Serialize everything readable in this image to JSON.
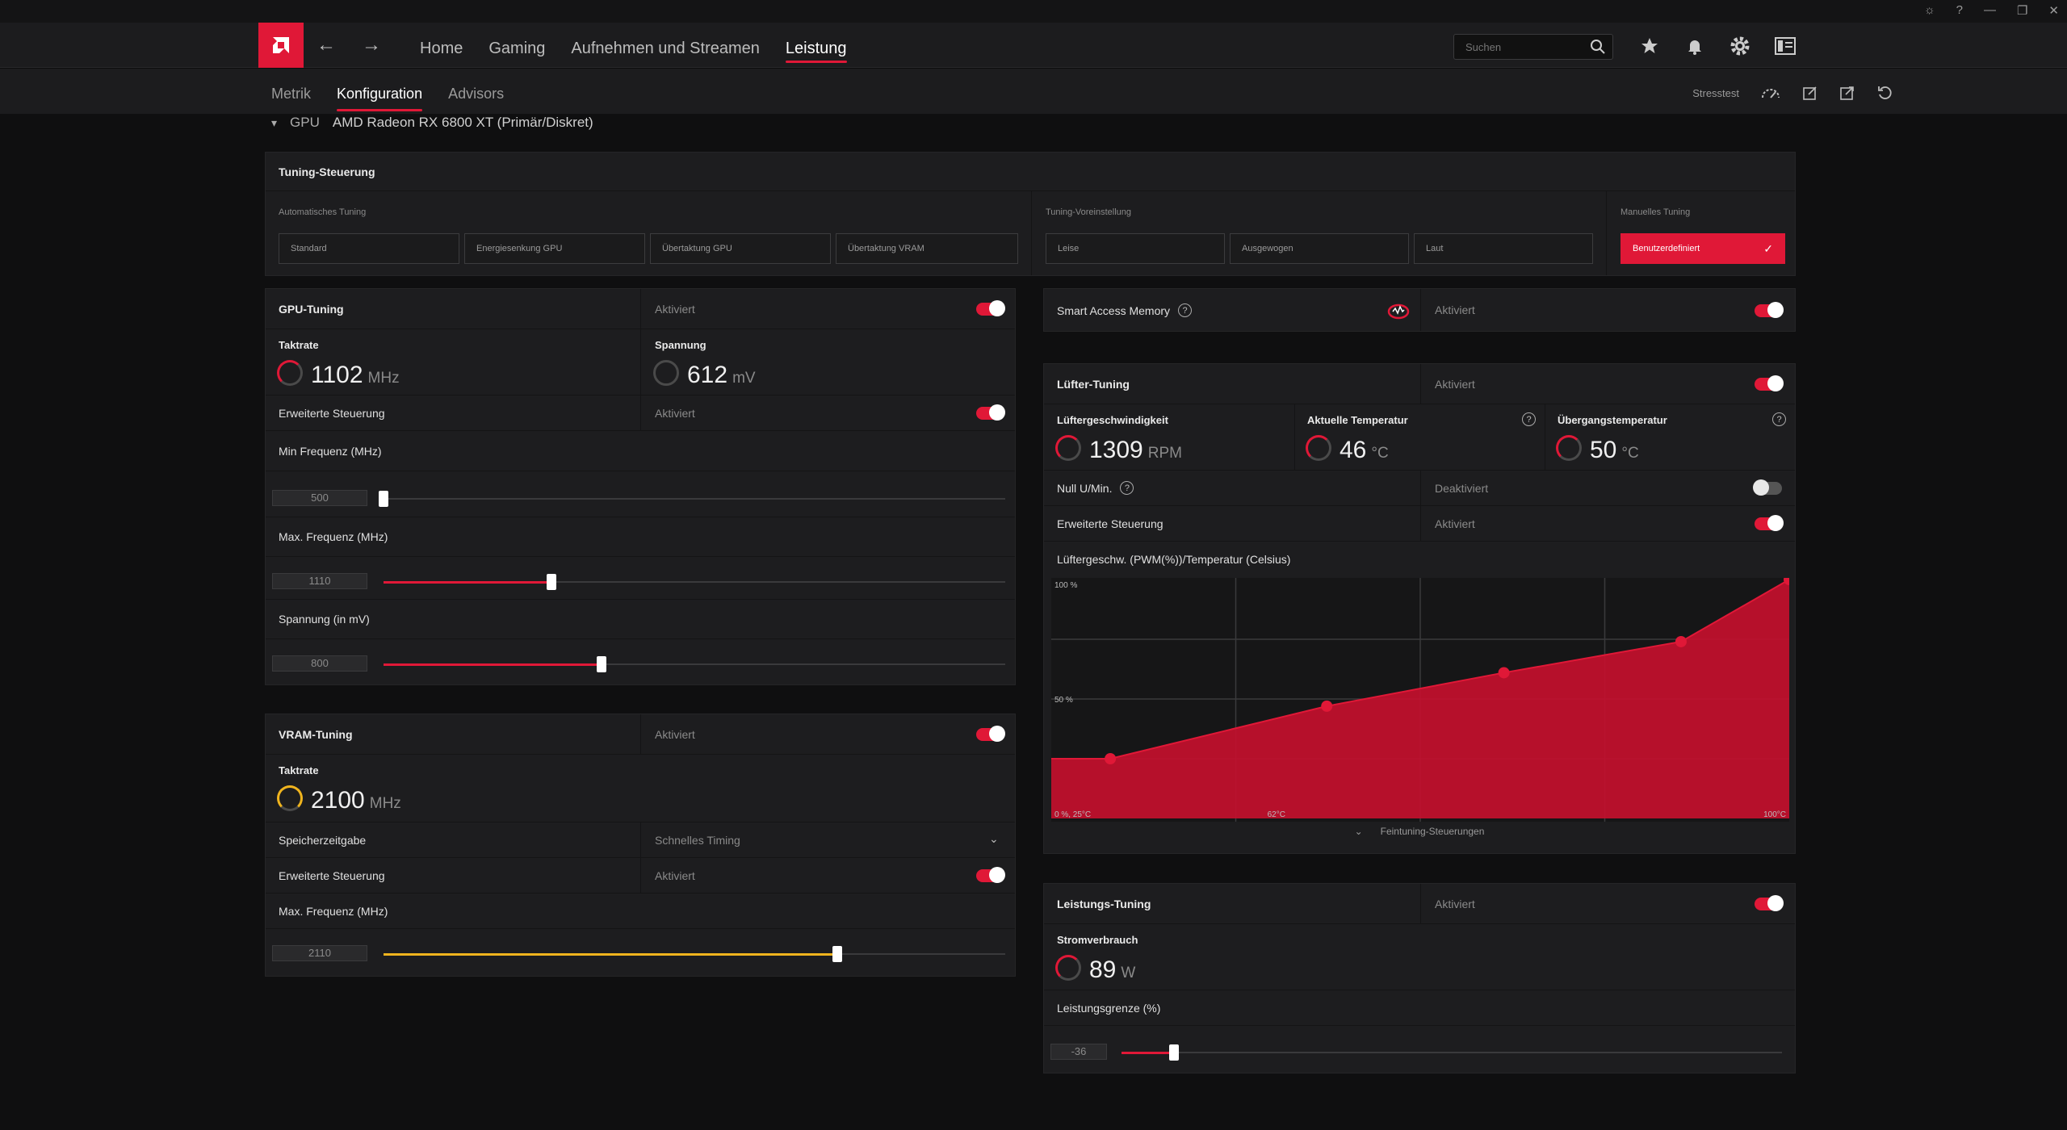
{
  "window": {
    "icons": [
      "bug-icon",
      "help-icon",
      "minimize-icon",
      "restore-icon",
      "close-icon"
    ]
  },
  "nav": {
    "links": [
      "Home",
      "Gaming",
      "Aufnehmen und Streamen",
      "Leistung"
    ],
    "active": "Leistung",
    "search_placeholder": "Suchen"
  },
  "subnav": {
    "tabs": [
      "Metrik",
      "Konfiguration",
      "Advisors"
    ],
    "active": "Konfiguration",
    "stress_label": "Stresstest"
  },
  "gpu": {
    "label": "GPU",
    "name": "AMD Radeon RX 6800 XT (Primär/Diskret)"
  },
  "tuning_control": {
    "title": "Tuning-Steuerung",
    "auto_label": "Automatisches Tuning",
    "auto_options": [
      "Standard",
      "Energiesenkung GPU",
      "Übertaktung GPU",
      "Übertaktung VRAM"
    ],
    "preset_label": "Tuning-Voreinstellung",
    "preset_options": [
      "Leise",
      "Ausgewogen",
      "Laut"
    ],
    "manual_label": "Manuelles Tuning",
    "manual_option": "Benutzerdefiniert"
  },
  "gpu_tuning": {
    "title": "GPU-Tuning",
    "status": "Aktiviert",
    "enabled": true,
    "clock_label": "Taktrate",
    "clock_value": "1102",
    "clock_unit": "MHz",
    "voltage_label": "Spannung",
    "voltage_value": "612",
    "voltage_unit": "mV",
    "advanced_label": "Erweiterte Steuerung",
    "advanced_status": "Aktiviert",
    "advanced_enabled": true,
    "min_freq_label": "Min Frequenz (MHz)",
    "min_freq_value": "500",
    "min_freq_fraction": 0.0,
    "max_freq_label": "Max. Frequenz (MHz)",
    "max_freq_value": "1110",
    "max_freq_fraction": 0.27,
    "volt_label": "Spannung (in mV)",
    "volt_value": "800",
    "volt_fraction": 0.35
  },
  "vram_tuning": {
    "title": "VRAM-Tuning",
    "status": "Aktiviert",
    "enabled": true,
    "clock_label": "Taktrate",
    "clock_value": "2100",
    "clock_unit": "MHz",
    "timing_label": "Speicherzeitgabe",
    "timing_value": "Schnelles Timing",
    "advanced_label": "Erweiterte Steuerung",
    "advanced_status": "Aktiviert",
    "advanced_enabled": true,
    "max_freq_label": "Max. Frequenz (MHz)",
    "max_freq_value": "2110",
    "max_freq_fraction": 0.73
  },
  "sam": {
    "label": "Smart Access Memory",
    "status": "Aktiviert",
    "enabled": true
  },
  "fan_tuning": {
    "title": "Lüfter-Tuning",
    "status": "Aktiviert",
    "enabled": true,
    "speed_label": "Lüftergeschwindigkeit",
    "speed_value": "1309",
    "speed_unit": "RPM",
    "temp_label": "Aktuelle Temperatur",
    "temp_value": "46",
    "temp_unit": "°C",
    "junction_label": "Übergangstemperatur",
    "junction_value": "50",
    "junction_unit": "°C",
    "zero_rpm_label": "Null U/Min.",
    "zero_rpm_status": "Deaktiviert",
    "zero_rpm_enabled": false,
    "advanced_label": "Erweiterte Steuerung",
    "advanced_status": "Aktiviert",
    "advanced_enabled": true,
    "curve_label": "Lüftergeschw. (PWM(%))/Temperatur (Celsius)",
    "fine_label": "Feintuning-Steuerungen"
  },
  "chart_data": {
    "type": "area",
    "xlabel": "",
    "ylabel": "",
    "x_tick_labels": [
      "0 %, 25°C",
      "62°C",
      "100°C"
    ],
    "y_tick_labels": [
      "100 %",
      "50 %"
    ],
    "xlim": [
      25,
      100
    ],
    "ylim": [
      0,
      100
    ],
    "x": [
      25,
      31,
      53,
      71,
      89,
      100
    ],
    "values": [
      25,
      25,
      47,
      61,
      74,
      100
    ],
    "grid": true,
    "color": "#c8102e"
  },
  "power_tuning": {
    "title": "Leistungs-Tuning",
    "status": "Aktiviert",
    "enabled": true,
    "power_label": "Stromverbrauch",
    "power_value": "89",
    "power_unit": "W",
    "limit_label": "Leistungsgrenze (%)",
    "limit_value": "-36",
    "limit_fraction": 0.08
  },
  "colors": {
    "accent": "#e01837",
    "vram_accent": "#f0b41e",
    "panel": "#1d1d1f"
  }
}
